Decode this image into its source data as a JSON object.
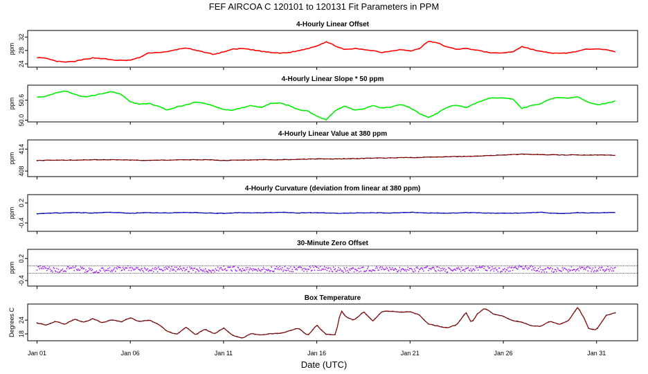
{
  "title": "FEF   AIRCOA C   120101 to 120131   Fit Parameters in PPM",
  "x_label": "Date (UTC)",
  "chart_data": [
    {
      "type": "line",
      "title": "4-Hourly Linear Offset",
      "ylabel": "ppm",
      "color": "#ff0000",
      "style": "line",
      "ylim": [
        23,
        34
      ],
      "yticks": [
        "24",
        "28",
        "32"
      ],
      "ytick_values": [
        24,
        28,
        32
      ],
      "x": [
        1,
        1.5,
        2,
        2.5,
        3,
        3.5,
        4,
        4.5,
        5,
        5.5,
        6,
        6.5,
        7,
        7.5,
        8,
        8.5,
        9,
        9.5,
        10,
        10.5,
        11,
        11.5,
        12,
        12.5,
        13,
        13.5,
        14,
        14.5,
        15,
        15.5,
        16,
        16.5,
        17,
        17.5,
        18,
        18.5,
        19,
        19.5,
        20,
        20.5,
        21,
        21.5,
        22,
        22.5,
        23,
        23.5,
        24,
        24.5,
        25,
        25.5,
        26,
        26.5,
        27,
        27.5,
        28,
        28.5,
        29,
        29.5,
        30,
        30.5,
        31,
        31.5,
        32
      ],
      "y": [
        25.9,
        25.6,
        24.8,
        24.5,
        24.7,
        25.3,
        25.8,
        25.6,
        25.2,
        25.0,
        25.1,
        25.9,
        27.3,
        27.4,
        27.6,
        28.3,
        28.8,
        28.0,
        27.5,
        26.8,
        27.6,
        28.4,
        28.6,
        28.2,
        27.8,
        27.4,
        27.2,
        27.4,
        27.9,
        28.6,
        29.4,
        30.6,
        29.4,
        28.2,
        28.6,
        28.3,
        28.0,
        27.4,
        27.9,
        28.3,
        27.8,
        28.6,
        30.8,
        30.2,
        29.0,
        28.4,
        28.6,
        28.2,
        27.6,
        27.2,
        27.3,
        27.6,
        29.2,
        28.4,
        27.7,
        27.3,
        27.1,
        27.3,
        27.8,
        28.4,
        28.6,
        28.2,
        27.6
      ]
    },
    {
      "type": "line",
      "title": "4-Hourly Linear Slope * 50 ppm",
      "ylabel": "ppm",
      "color": "#00ee00",
      "style": "line",
      "ylim": [
        49.95,
        51.05
      ],
      "yticks": [
        "50.0",
        "50.6"
      ],
      "ytick_values": [
        50.0,
        50.6
      ],
      "x": [
        1,
        1.5,
        2,
        2.5,
        3,
        3.5,
        4,
        4.5,
        5,
        5.5,
        6,
        6.5,
        7,
        7.5,
        8,
        8.5,
        9,
        9.5,
        10,
        10.5,
        11,
        11.5,
        12,
        12.5,
        13,
        13.5,
        14,
        14.5,
        15,
        15.5,
        16,
        16.5,
        17,
        17.5,
        18,
        18.5,
        19,
        19.5,
        20,
        20.5,
        21,
        21.5,
        22,
        22.5,
        23,
        23.5,
        24,
        24.5,
        25,
        25.5,
        26,
        26.5,
        27,
        27.5,
        28,
        28.5,
        29,
        29.5,
        30,
        30.5,
        31,
        31.5,
        32
      ],
      "y": [
        50.7,
        50.72,
        50.82,
        50.88,
        50.78,
        50.7,
        50.74,
        50.8,
        50.85,
        50.78,
        50.55,
        50.48,
        50.5,
        50.42,
        50.3,
        50.4,
        50.46,
        50.55,
        50.5,
        50.42,
        50.32,
        50.3,
        50.38,
        50.44,
        50.38,
        50.5,
        50.52,
        50.44,
        50.32,
        50.28,
        50.12,
        50.02,
        50.28,
        50.44,
        50.3,
        50.34,
        50.44,
        50.36,
        50.4,
        50.48,
        50.38,
        50.2,
        50.08,
        50.22,
        50.4,
        50.45,
        50.38,
        50.5,
        50.62,
        50.68,
        50.66,
        50.64,
        50.35,
        50.44,
        50.5,
        50.64,
        50.68,
        50.66,
        50.7,
        50.56,
        50.46,
        50.5,
        50.58
      ]
    },
    {
      "type": "scatter",
      "title": "4-Hourly Linear Value at 380 ppm",
      "ylabel": "ppm",
      "color": "#8b0000",
      "style": "dots",
      "ylim": [
        406.5,
        416.5
      ],
      "yticks": [
        "408",
        "414"
      ],
      "ytick_values": [
        408,
        414
      ],
      "x": [
        1,
        2,
        3,
        4,
        5,
        6,
        7,
        8,
        9,
        10,
        11,
        12,
        13,
        14,
        15,
        16,
        17,
        18,
        19,
        20,
        21,
        22,
        23,
        24,
        25,
        26,
        27,
        28,
        29,
        30,
        31,
        32
      ],
      "y": [
        410.9,
        411.0,
        411.0,
        411.1,
        411.1,
        411.0,
        410.9,
        411.0,
        411.1,
        411.1,
        410.9,
        411.0,
        411.1,
        411.1,
        411.2,
        411.3,
        411.3,
        411.4,
        411.5,
        411.6,
        411.7,
        411.8,
        411.9,
        412.0,
        412.2,
        412.4,
        412.6,
        412.5,
        412.4,
        412.4,
        412.4,
        412.3
      ]
    },
    {
      "type": "scatter",
      "title": "4-Hourly Curvature (deviation from linear at 380 ppm)",
      "ylabel": "ppm",
      "color": "#0000cc",
      "style": "dots",
      "ylim": [
        -0.65,
        0.45
      ],
      "yticks": [
        "-0.4",
        "0.2"
      ],
      "ytick_values": [
        -0.4,
        0.2
      ],
      "x": [
        1,
        2,
        3,
        4,
        5,
        6,
        7,
        8,
        9,
        10,
        11,
        12,
        13,
        14,
        15,
        16,
        17,
        18,
        19,
        20,
        21,
        22,
        23,
        24,
        25,
        26,
        27,
        28,
        29,
        30,
        31,
        32
      ],
      "y": [
        -0.12,
        -0.1,
        -0.09,
        -0.1,
        -0.08,
        -0.11,
        -0.09,
        -0.1,
        -0.08,
        -0.1,
        -0.11,
        -0.09,
        -0.1,
        -0.08,
        -0.1,
        -0.09,
        -0.11,
        -0.1,
        -0.09,
        -0.1,
        -0.08,
        -0.1,
        -0.11,
        -0.09,
        -0.1,
        -0.11,
        -0.1,
        -0.08,
        -0.12,
        -0.09,
        -0.1,
        -0.08
      ]
    },
    {
      "type": "scatter",
      "title": "30-Minute Zero Offset",
      "ylabel": "ppm",
      "color": "#a020f0",
      "style": "band",
      "ylim": [
        -0.55,
        0.45
      ],
      "yticks": [
        "-0.4",
        "0.2"
      ],
      "ytick_values": [
        -0.4,
        0.2
      ],
      "x": [
        1,
        2,
        3,
        4,
        5,
        6,
        7,
        8,
        9,
        10,
        11,
        12,
        13,
        14,
        15,
        16,
        17,
        18,
        19,
        20,
        21,
        22,
        23,
        24,
        25,
        26,
        27,
        28,
        29,
        30,
        31,
        32
      ],
      "y": [
        -0.05,
        -0.12,
        -0.06,
        -0.14,
        -0.1,
        -0.06,
        -0.12,
        -0.08,
        -0.1,
        -0.13,
        -0.07,
        -0.1,
        -0.12,
        -0.08,
        -0.1,
        -0.06,
        -0.1,
        -0.12,
        -0.08,
        -0.1,
        -0.11,
        -0.07,
        -0.12,
        -0.09,
        -0.06,
        -0.11,
        -0.02,
        -0.1,
        -0.12,
        -0.08,
        -0.1,
        -0.07
      ],
      "ref_lines": [
        0.0,
        -0.2
      ]
    },
    {
      "type": "line",
      "title": "Box Temperature",
      "ylabel": "Degrees C",
      "color": "#8b0000",
      "style": "dotline",
      "ylim": [
        15,
        31
      ],
      "yticks": [
        "18",
        "24"
      ],
      "ytick_values": [
        18,
        24
      ],
      "x": [
        1,
        1.5,
        2,
        2.5,
        3,
        3.5,
        4,
        4.5,
        5,
        5.5,
        6,
        6.5,
        7,
        7.5,
        8,
        8.5,
        9,
        9.5,
        10,
        10.5,
        11,
        11.5,
        12,
        12.5,
        13,
        13.5,
        14,
        14.5,
        15,
        15.5,
        16,
        16.5,
        17,
        17.3,
        17.6,
        18,
        18.5,
        19,
        19.5,
        20,
        20.5,
        21,
        21.5,
        22,
        22.5,
        23,
        23.5,
        24,
        24.3,
        24.6,
        25,
        25.5,
        26,
        26.5,
        27,
        27.5,
        28,
        28.5,
        29,
        29.5,
        30,
        30.3,
        30.6,
        31,
        31.5,
        32
      ],
      "y": [
        22.8,
        21.8,
        23.6,
        22.2,
        24.4,
        23.0,
        24.6,
        22.8,
        24.2,
        23.2,
        25.0,
        23.4,
        24.0,
        22.2,
        19.0,
        17.8,
        21.0,
        17.6,
        20.0,
        18.0,
        20.6,
        17.4,
        16.2,
        18.2,
        17.4,
        18.0,
        18.2,
        19.2,
        20.6,
        17.2,
        21.8,
        17.8,
        17.6,
        28.2,
        25.2,
        24.0,
        27.6,
        23.6,
        27.8,
        27.8,
        27.4,
        27.6,
        26.2,
        22.2,
        21.4,
        20.6,
        22.0,
        27.4,
        22.8,
        26.6,
        29.2,
        26.6,
        25.6,
        23.8,
        23.0,
        21.6,
        21.2,
        23.6,
        22.0,
        23.8,
        29.6,
        25.4,
        20.0,
        19.8,
        26.0,
        27.2
      ]
    }
  ],
  "x_axis": {
    "range": [
      0.5,
      33.2
    ],
    "ticks": [
      {
        "label": "Jan 01",
        "value": 1
      },
      {
        "label": "Jan 06",
        "value": 6
      },
      {
        "label": "Jan 11",
        "value": 11
      },
      {
        "label": "Jan 16",
        "value": 16
      },
      {
        "label": "Jan 21",
        "value": 21
      },
      {
        "label": "Jan 26",
        "value": 26
      },
      {
        "label": "Jan 31",
        "value": 31
      }
    ]
  }
}
